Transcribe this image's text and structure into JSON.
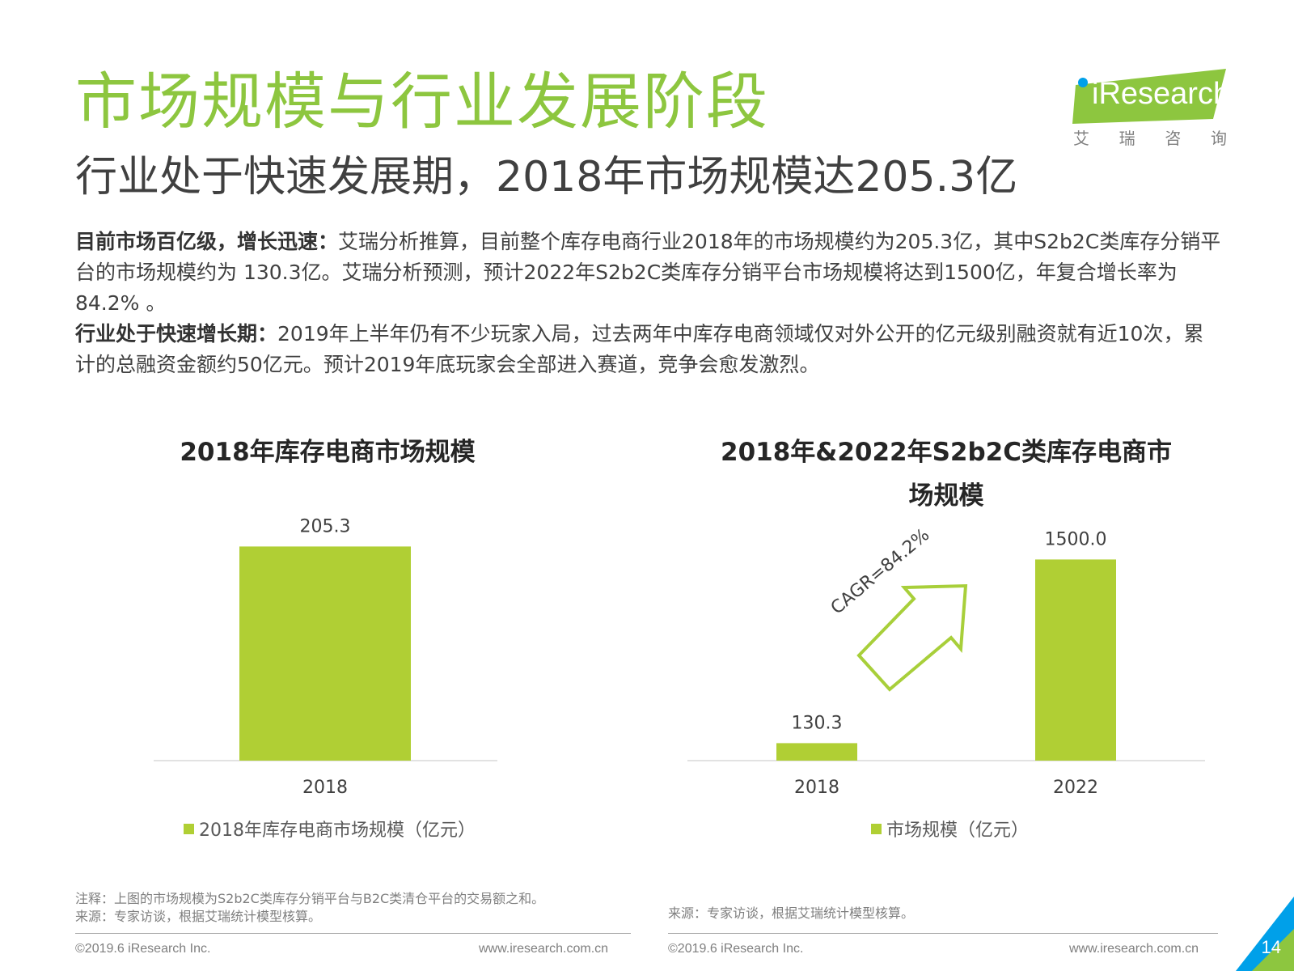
{
  "header": {
    "title": "市场规模与行业发展阶段",
    "subtitle": "行业处于快速发展期，2018年市场规模达205.3亿"
  },
  "logo": {
    "brand": "iResearch",
    "cn_chars": [
      "艾",
      "瑞",
      "咨",
      "询"
    ],
    "colors": {
      "green": "#8dc63f",
      "blue": "#00a0e9"
    }
  },
  "body": {
    "p1_lead": "目前市场百亿级，增长迅速：",
    "p1_text": "艾瑞分析推算，目前整个库存电商行业2018年的市场规模约为205.3亿，其中S2b2C类库存分销平台的市场规模约为 130.3亿。艾瑞分析预测，预计2022年S2b2C类库存分销平台市场规模将达到1500亿，年复合增长率为84.2% 。",
    "p2_lead": "行业处于快速增长期：",
    "p2_text": "2019年上半年仍有不少玩家入局，过去两年中库存电商领域仅对外公开的亿元级别融资就有近10次，累计的总融资金额约50亿元。预计2019年底玩家会全部进入赛道，竞争会愈发激烈。"
  },
  "chart_data": [
    {
      "type": "bar",
      "title": "2018年库存电商市场规模",
      "categories": [
        "2018"
      ],
      "series": [
        {
          "name": "2018年库存电商市场规模（亿元）",
          "values": [
            205.3
          ]
        }
      ],
      "data_labels": [
        "205.3"
      ],
      "ylim": [
        0,
        225
      ],
      "grid": false,
      "legend": "bottom",
      "color": "#b0cf34"
    },
    {
      "type": "bar",
      "title": "2018年&2022年S2b2C类库存电商市场规模",
      "categories": [
        "2018",
        "2022"
      ],
      "series": [
        {
          "name": "市场规模（亿元）",
          "values": [
            130.3,
            1500.0
          ]
        }
      ],
      "data_labels": [
        "130.3",
        "1500.0"
      ],
      "annotation": "CAGR=84.2%",
      "ylim": [
        0,
        1750
      ],
      "grid": false,
      "legend": "bottom",
      "color": "#b0cf34"
    }
  ],
  "notes": {
    "left_note": "注释：上图的市场规模为S2b2C类库存分销平台与B2C类清仓平台的交易额之和。",
    "left_source": "来源：专家访谈，根据艾瑞统计模型核算。",
    "right_source": "来源：专家访谈，根据艾瑞统计模型核算。"
  },
  "footer": {
    "copyright_left": "©2019.6 iResearch Inc.",
    "url_left": "www.iresearch.com.cn",
    "copyright_right": "©2019.6 iResearch Inc.",
    "url_right": "www.iresearch.com.cn",
    "page_number": "14"
  }
}
